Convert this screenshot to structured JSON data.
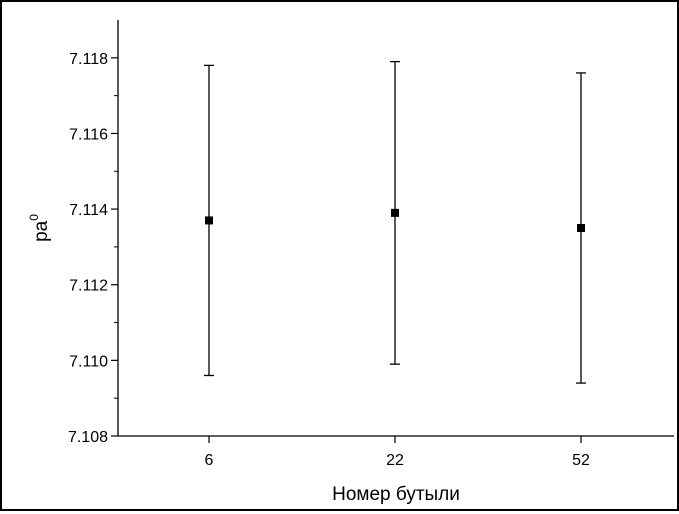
{
  "chart_data": {
    "type": "scatter",
    "title": "",
    "xlabel": "Номер бутыли",
    "ylabel": "pa",
    "ylabel_superscript": "0",
    "categories": [
      "6",
      "22",
      "52"
    ],
    "series": [
      {
        "values": [
          7.1137,
          7.1139,
          7.1135
        ],
        "error_low": [
          7.1096,
          7.1099,
          7.1094
        ],
        "error_high": [
          7.1178,
          7.1179,
          7.1176
        ]
      }
    ],
    "ylim": [
      7.108,
      7.119
    ],
    "yticks": [
      7.108,
      7.11,
      7.112,
      7.114,
      7.116,
      7.118
    ],
    "ytick_labels": [
      "7.108",
      "7.110",
      "7.112",
      "7.114",
      "7.116",
      "7.118"
    ],
    "grid": false,
    "legend": "none",
    "colors": {
      "marker": "#000000",
      "axis": "#000000"
    }
  }
}
